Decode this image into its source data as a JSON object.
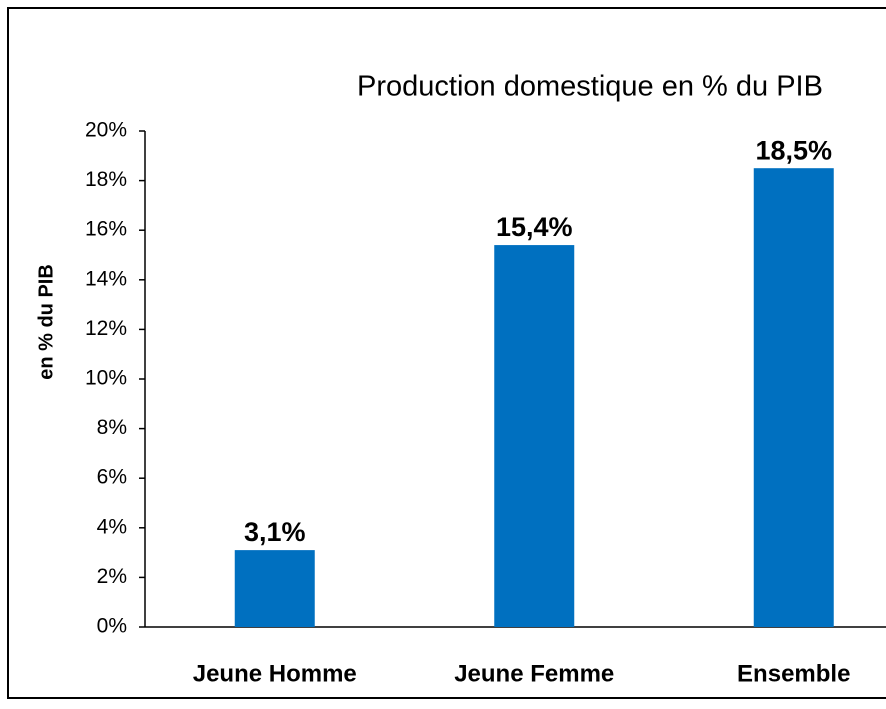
{
  "chart_data": {
    "type": "bar",
    "title": "Production domestique en % du PIB",
    "y_label": "en % du PIB",
    "categories": [
      "Jeune Homme",
      "Jeune Femme",
      "Ensemble"
    ],
    "values": [
      3.1,
      15.4,
      18.5
    ],
    "value_labels": [
      "3,1%",
      "15,4%",
      "18,5%"
    ],
    "color": "#0070c0",
    "ylim": [
      0,
      20
    ],
    "yticks": [
      {
        "value": 0,
        "label": "0%"
      },
      {
        "value": 2,
        "label": "2%"
      },
      {
        "value": 4,
        "label": "4%"
      },
      {
        "value": 6,
        "label": "6%"
      },
      {
        "value": 8,
        "label": "8%"
      },
      {
        "value": 10,
        "label": "10%"
      },
      {
        "value": 12,
        "label": "12%"
      },
      {
        "value": 14,
        "label": "14%"
      },
      {
        "value": 16,
        "label": "16%"
      },
      {
        "value": 18,
        "label": "18%"
      },
      {
        "value": 20,
        "label": "20%"
      }
    ],
    "grid": false
  }
}
